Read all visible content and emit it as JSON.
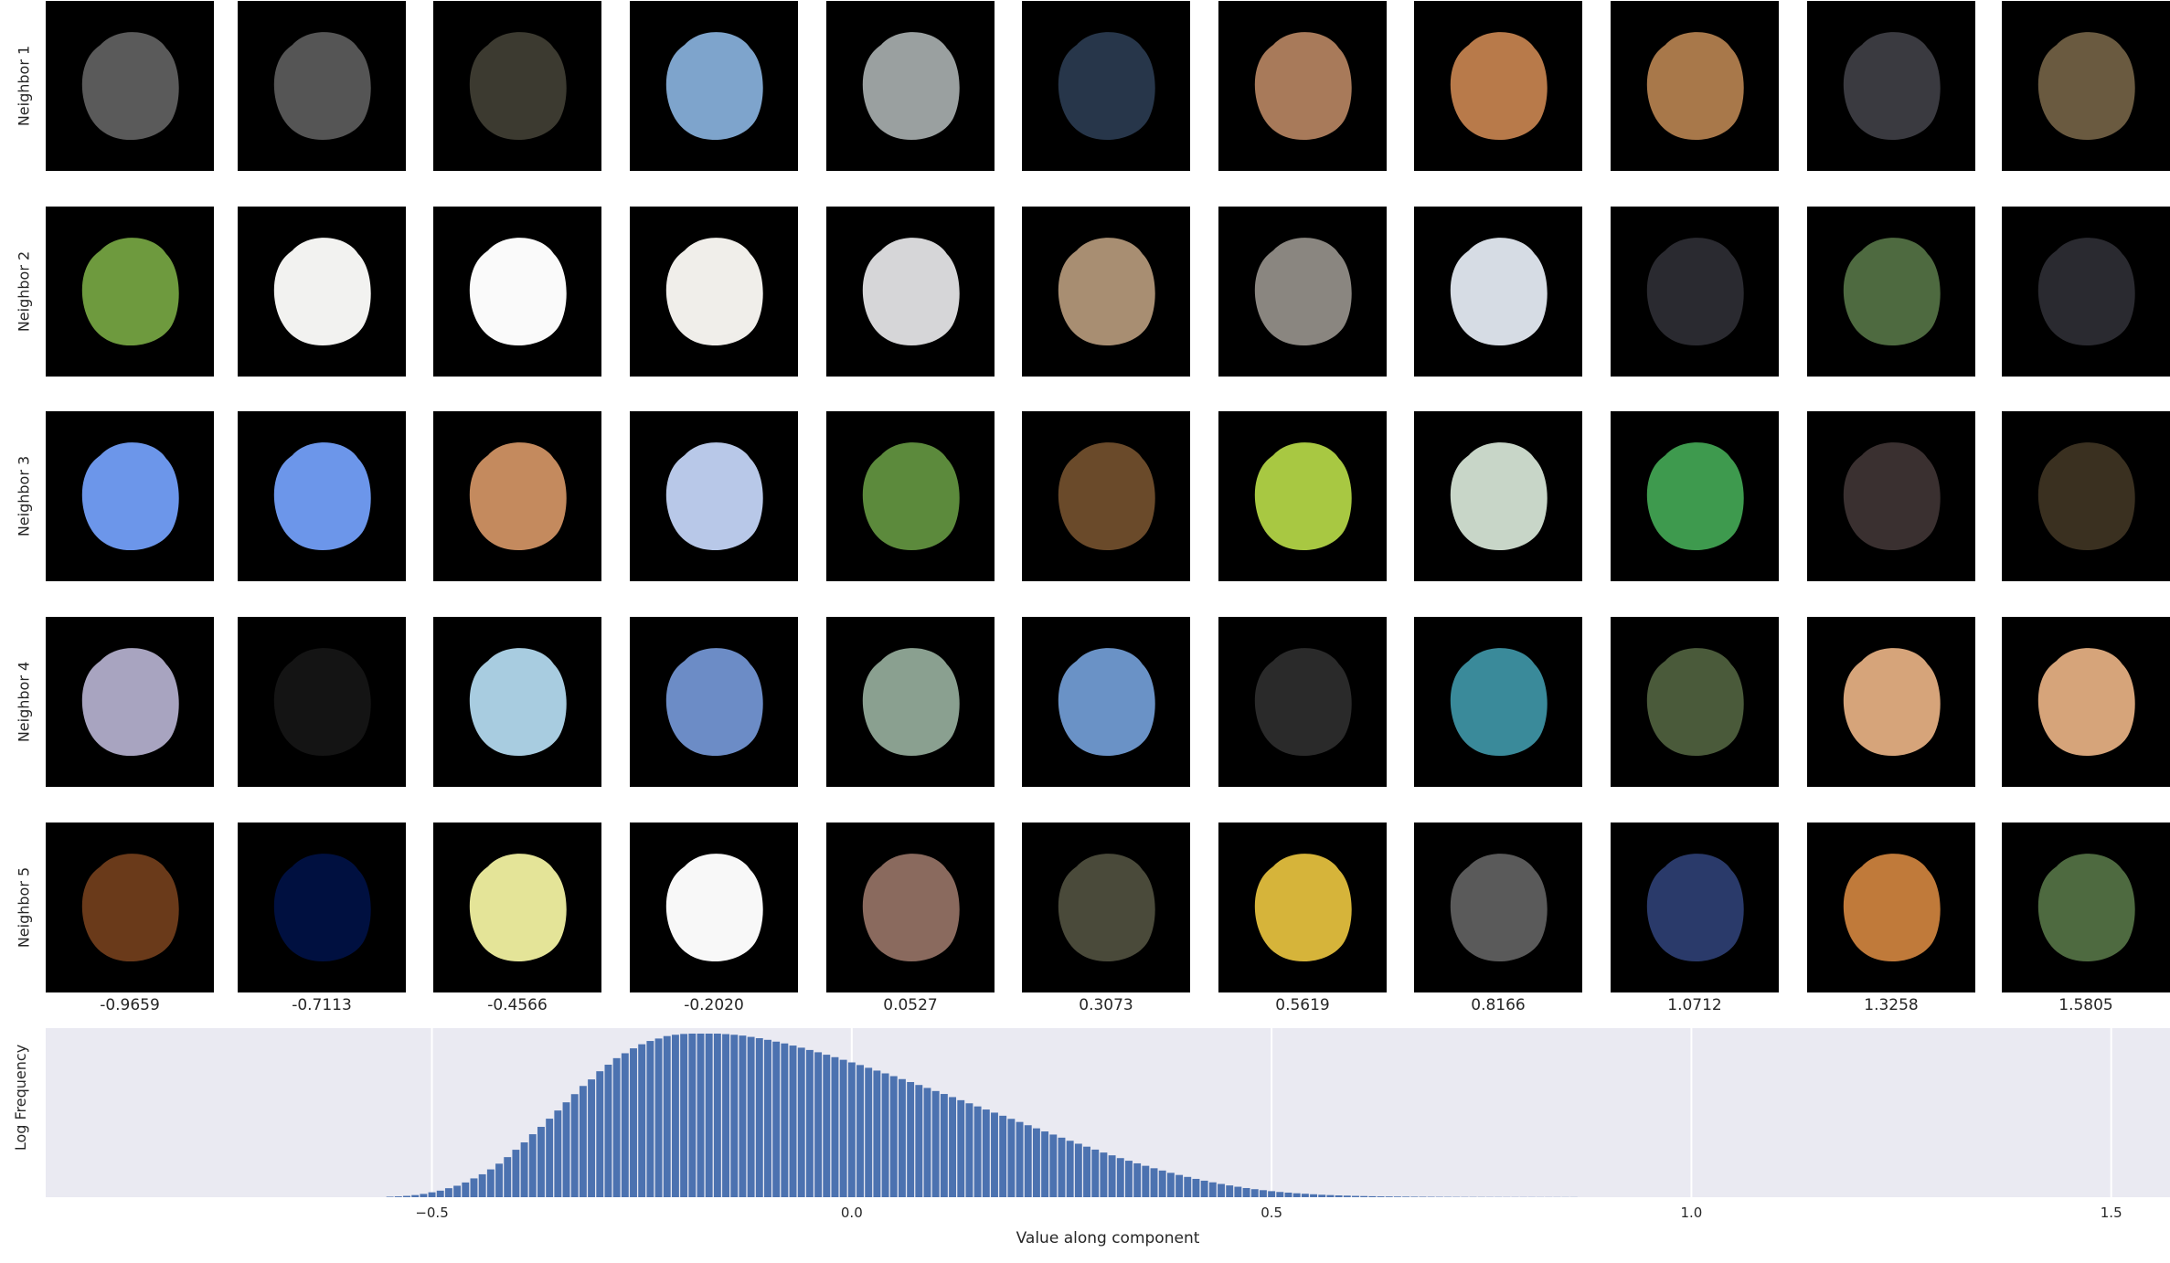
{
  "rows": [
    "Neighbor 1",
    "Neighbor 2",
    "Neighbor 3",
    "Neighbor 4",
    "Neighbor 5"
  ],
  "columns": [
    "-0.9659",
    "-0.7113",
    "-0.4566",
    "-0.2020",
    "0.0527",
    "0.3073",
    "0.5619",
    "0.8166",
    "1.0712",
    "1.3258",
    "1.5805"
  ],
  "patches": [
    [
      "#5a5a5a",
      "#555555",
      "#3c3a30",
      "#7ea4cc",
      "#9aa0a0",
      "#27364a",
      "#a87a5a",
      "#b87a4a",
      "#a8784a",
      "#3a3a40",
      "#6a5a40"
    ],
    [
      "#6e9a3e",
      "#f2f2f0",
      "#fafafa",
      "#f0eeea",
      "#d6d6d8",
      "#a88e72",
      "#8a8680",
      "#d6dce4",
      "#2a2a30",
      "#4e6a40",
      "#2a2a30"
    ],
    [
      "#6c96ea",
      "#6c96ea",
      "#c48a5e",
      "#b8c8e8",
      "#5c8a3c",
      "#6a4a2a",
      "#a8c842",
      "#c8d6c8",
      "#3e9a4e",
      "#3a3030",
      "#3a3020"
    ],
    [
      "#a8a4c0",
      "#141414",
      "#a8cce0",
      "#6c8cc6",
      "#8aa090",
      "#6a92c6",
      "#2a2a2a",
      "#3a8a9a",
      "#4a5a3a",
      "#d6a47a",
      "#d6a47a"
    ],
    [
      "#6a3a1a",
      "#001040",
      "#e4e498",
      "#f8f8f8",
      "#8a6a5e",
      "#4a4a3a",
      "#d6b43a",
      "#5a5a5a",
      "#2a3a6a",
      "#c07a3a",
      "#4e6a40"
    ]
  ],
  "histogram": {
    "xlabel": "Value along component",
    "ylabel": "Log Frequency",
    "xticks": [
      "−0.5",
      "0.0",
      "0.5",
      "1.0",
      "1.5"
    ]
  },
  "chart_data": {
    "type": "bar",
    "title": "",
    "xlabel": "Value along component",
    "ylabel": "Log Frequency",
    "xlim": [
      -0.96,
      1.57
    ],
    "ylim": [
      0,
      1
    ],
    "grid": true,
    "x": [
      -0.55,
      -0.54,
      -0.53,
      -0.52,
      -0.51,
      -0.5,
      -0.49,
      -0.48,
      -0.47,
      -0.46,
      -0.45,
      -0.44,
      -0.43,
      -0.42,
      -0.41,
      -0.4,
      -0.39,
      -0.38,
      -0.37,
      -0.36,
      -0.35,
      -0.34,
      -0.33,
      -0.32,
      -0.31,
      -0.3,
      -0.29,
      -0.28,
      -0.27,
      -0.26,
      -0.25,
      -0.24,
      -0.23,
      -0.22,
      -0.21,
      -0.2,
      -0.19,
      -0.18,
      -0.17,
      -0.16,
      -0.15,
      -0.14,
      -0.13,
      -0.12,
      -0.11,
      -0.1,
      -0.09,
      -0.08,
      -0.07,
      -0.06,
      -0.05,
      -0.04,
      -0.03,
      -0.02,
      -0.01,
      0.0,
      0.01,
      0.02,
      0.03,
      0.04,
      0.05,
      0.06,
      0.07,
      0.08,
      0.09,
      0.1,
      0.11,
      0.12,
      0.13,
      0.14,
      0.15,
      0.16,
      0.17,
      0.18,
      0.19,
      0.2,
      0.21,
      0.22,
      0.23,
      0.24,
      0.25,
      0.26,
      0.27,
      0.28,
      0.29,
      0.3,
      0.31,
      0.32,
      0.33,
      0.34,
      0.35,
      0.36,
      0.37,
      0.38,
      0.39,
      0.4,
      0.41,
      0.42,
      0.43,
      0.44,
      0.45,
      0.46,
      0.47,
      0.48,
      0.49,
      0.5,
      0.51,
      0.52,
      0.53,
      0.54,
      0.55,
      0.56,
      0.57,
      0.58,
      0.59,
      0.6,
      0.61,
      0.62,
      0.63,
      0.64,
      0.65,
      0.66,
      0.67,
      0.68,
      0.69,
      0.7,
      0.71,
      0.72,
      0.73,
      0.74,
      0.75,
      0.76,
      0.77,
      0.78,
      0.79,
      0.8,
      0.81,
      0.82,
      0.83,
      0.84,
      0.85,
      0.86
    ],
    "values": [
      0.003,
      0.005,
      0.008,
      0.013,
      0.02,
      0.03,
      0.04,
      0.055,
      0.07,
      0.09,
      0.115,
      0.14,
      0.17,
      0.205,
      0.245,
      0.29,
      0.335,
      0.385,
      0.43,
      0.48,
      0.53,
      0.58,
      0.63,
      0.68,
      0.72,
      0.77,
      0.81,
      0.85,
      0.88,
      0.91,
      0.935,
      0.955,
      0.97,
      0.985,
      0.993,
      0.998,
      1.0,
      1.0,
      1.0,
      1.0,
      0.997,
      0.993,
      0.988,
      0.98,
      0.972,
      0.962,
      0.951,
      0.94,
      0.927,
      0.914,
      0.9,
      0.886,
      0.871,
      0.856,
      0.84,
      0.824,
      0.808,
      0.791,
      0.774,
      0.757,
      0.74,
      0.722,
      0.704,
      0.686,
      0.668,
      0.649,
      0.631,
      0.612,
      0.593,
      0.574,
      0.555,
      0.536,
      0.517,
      0.498,
      0.479,
      0.46,
      0.44,
      0.421,
      0.402,
      0.383,
      0.364,
      0.345,
      0.327,
      0.309,
      0.291,
      0.273,
      0.256,
      0.239,
      0.223,
      0.207,
      0.192,
      0.177,
      0.163,
      0.149,
      0.136,
      0.124,
      0.112,
      0.101,
      0.091,
      0.081,
      0.072,
      0.064,
      0.056,
      0.049,
      0.043,
      0.037,
      0.032,
      0.028,
      0.024,
      0.021,
      0.018,
      0.015,
      0.013,
      0.011,
      0.0095,
      0.008,
      0.007,
      0.006,
      0.005,
      0.0045,
      0.004,
      0.0035,
      0.003,
      0.0027,
      0.0024,
      0.0021,
      0.0019,
      0.0017,
      0.0015,
      0.0014,
      0.0013,
      0.0012,
      0.0011,
      0.001,
      0.001,
      0.0009,
      0.0009,
      0.0008,
      0.0008,
      0.0008,
      0.0007,
      0.0007
    ]
  }
}
